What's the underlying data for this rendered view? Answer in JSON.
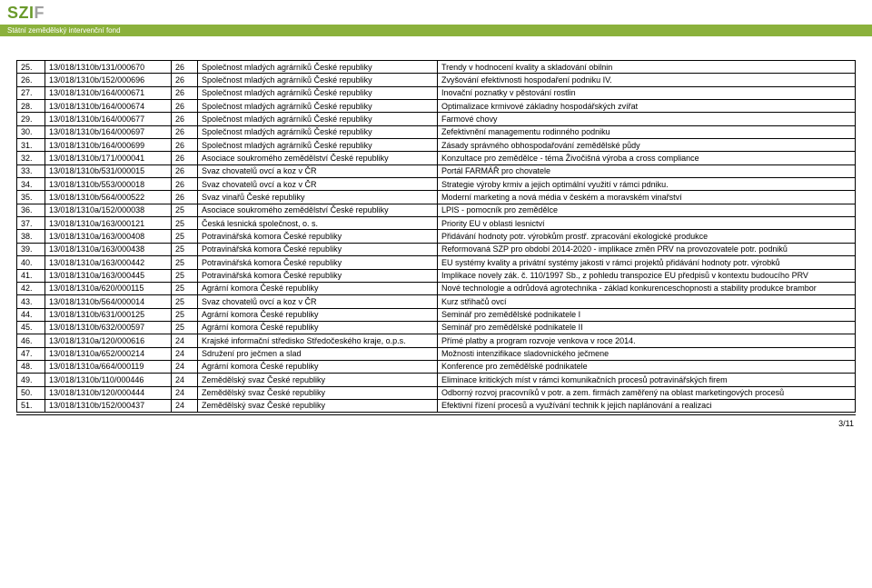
{
  "header": {
    "logo_text": "SZIF",
    "subtitle": "Státní zemědělský intervenční fond"
  },
  "table": {
    "rows": [
      [
        "25.",
        "13/018/1310b/131/000670",
        "26",
        "Společnost mladých agrárníků České republiky",
        "Trendy v hodnocení kvality a skladování obilnin"
      ],
      [
        "26.",
        "13/018/1310b/152/000696",
        "26",
        "Společnost mladých agrárníků České republiky",
        "Zvyšování efektivnosti hospodaření podniku IV."
      ],
      [
        "27.",
        "13/018/1310b/164/000671",
        "26",
        "Společnost mladých agrárníků České republiky",
        "Inovační poznatky v pěstování rostlin"
      ],
      [
        "28.",
        "13/018/1310b/164/000674",
        "26",
        "Společnost mladých agrárníků České republiky",
        "Optimalizace krmivové základny hospodářských zvířat"
      ],
      [
        "29.",
        "13/018/1310b/164/000677",
        "26",
        "Společnost mladých agrárníků České republiky",
        "Farmové chovy"
      ],
      [
        "30.",
        "13/018/1310b/164/000697",
        "26",
        "Společnost mladých agrárníků České republiky",
        "Zefektivnění managementu rodinného podniku"
      ],
      [
        "31.",
        "13/018/1310b/164/000699",
        "26",
        "Společnost mladých agrárníků České republiky",
        "Zásady správného obhospodařování zemědělské půdy"
      ],
      [
        "32.",
        "13/018/1310b/171/000041",
        "26",
        "Asociace soukromého zemědělství České republiky",
        "Konzultace pro zemědělce - téma Živočišná výroba a cross compliance"
      ],
      [
        "33.",
        "13/018/1310b/531/000015",
        "26",
        "Svaz chovatelů ovcí a koz v ČR",
        "Portál FARMÁŘ pro chovatele"
      ],
      [
        "34.",
        "13/018/1310b/553/000018",
        "26",
        "Svaz chovatelů ovcí a koz v ČR",
        "Strategie výroby krmiv a jejich optimální využití v rámci pdniku."
      ],
      [
        "35.",
        "13/018/1310b/564/000522",
        "26",
        "Svaz vinařů České republiky",
        "Moderní marketing a nová média v českém a moravském vinařství"
      ],
      [
        "36.",
        "13/018/1310a/152/000038",
        "25",
        "Asociace soukromého zemědělství České republiky",
        "LPIS - pomocník pro zemědělce"
      ],
      [
        "37.",
        "13/018/1310a/163/000121",
        "25",
        "Česká lesnická společnost, o. s.",
        "Priority EU v oblasti lesnictví"
      ],
      [
        "38.",
        "13/018/1310a/163/000408",
        "25",
        "Potravinářská komora České republiky",
        "Přidávání hodnoty potr. výrobkům prostř. zpracování ekologické produkce"
      ],
      [
        "39.",
        "13/018/1310a/163/000438",
        "25",
        "Potravinářská komora České republiky",
        "Reformovaná SZP pro období 2014-2020 - implikace změn PRV na provozovatele potr. podniků"
      ],
      [
        "40.",
        "13/018/1310a/163/000442",
        "25",
        "Potravinářská komora České republiky",
        "EU systémy kvality a privátní systémy jakosti v rámci projektů přidávání hodnoty potr. výrobků"
      ],
      [
        "41.",
        "13/018/1310a/163/000445",
        "25",
        "Potravinářská komora České republiky",
        "Implikace novely zák. č. 110/1997 Sb., z pohledu transpozice EU předpisů v kontextu budoucího PRV"
      ],
      [
        "42.",
        "13/018/1310a/620/000115",
        "25",
        "Agrární komora České republiky",
        "Nové technologie a odrůdová agrotechnika - základ konkurenceschopnosti a stability produkce  brambor"
      ],
      [
        "43.",
        "13/018/1310b/564/000014",
        "25",
        "Svaz chovatelů ovcí a koz v ČR",
        "Kurz střihačů ovcí"
      ],
      [
        "44.",
        "13/018/1310b/631/000125",
        "25",
        "Agrární komora České republiky",
        "Seminář pro zemědělské podnikatele I"
      ],
      [
        "45.",
        "13/018/1310b/632/000597",
        "25",
        "Agrární komora České republiky",
        "Seminář pro zemědělské podnikatele II"
      ],
      [
        "46.",
        "13/018/1310a/120/000616",
        "24",
        "Krajské informační středisko Středočeského kraje, o.p.s.",
        "Přímé platby a program rozvoje venkova v roce 2014."
      ],
      [
        "47.",
        "13/018/1310a/652/000214",
        "24",
        "Sdružení pro ječmen a slad",
        "Možnosti intenzifikace sladovnického ječmene"
      ],
      [
        "48.",
        "13/018/1310a/664/000119",
        "24",
        "Agrární komora České republiky",
        "Konference pro zemědělské podnikatele"
      ],
      [
        "49.",
        "13/018/1310b/110/000446",
        "24",
        "Zemědělský svaz České republiky",
        "Eliminace kritických míst v rámci komunikačních procesů potravinářských firem"
      ],
      [
        "50.",
        "13/018/1310b/120/000444",
        "24",
        "Zemědělský svaz České republiky",
        "Odborný rozvoj pracovníků v potr. a zem. firmách zaměřený na oblast marketingových procesů"
      ],
      [
        "51.",
        "13/018/1310b/152/000437",
        "24",
        "Zemědělský svaz České republiky",
        "Efektivní řízení procesů a využívání technik k jejich naplánování a realizaci"
      ]
    ]
  },
  "pager": "3/11"
}
